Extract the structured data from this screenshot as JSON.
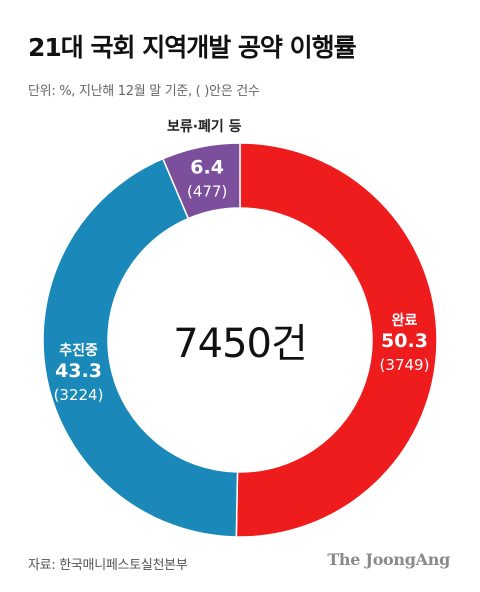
{
  "header": {
    "title": "21대 국회 지역개발 공약 이행률",
    "subtitle": "단위: %, 지난해 12월 말 기준, ( )안은 건수"
  },
  "chart_data": {
    "type": "pie",
    "variant": "donut",
    "center_label": "7450건",
    "slices": [
      {
        "name": "완료",
        "percent": "50.3",
        "count": "(3749)",
        "value": 50.3,
        "color": "#ee1c1c"
      },
      {
        "name": "추진중",
        "percent": "43.3",
        "count": "(3224)",
        "value": 43.3,
        "color": "#1a88b8"
      },
      {
        "name": "보류·폐기 등",
        "percent": "6.4",
        "count": "(477)",
        "value": 6.4,
        "color": "#7b4f9b"
      }
    ]
  },
  "footer": {
    "source": "자료: 한국매니페스토실천본부",
    "brand": "The JoongAng"
  }
}
